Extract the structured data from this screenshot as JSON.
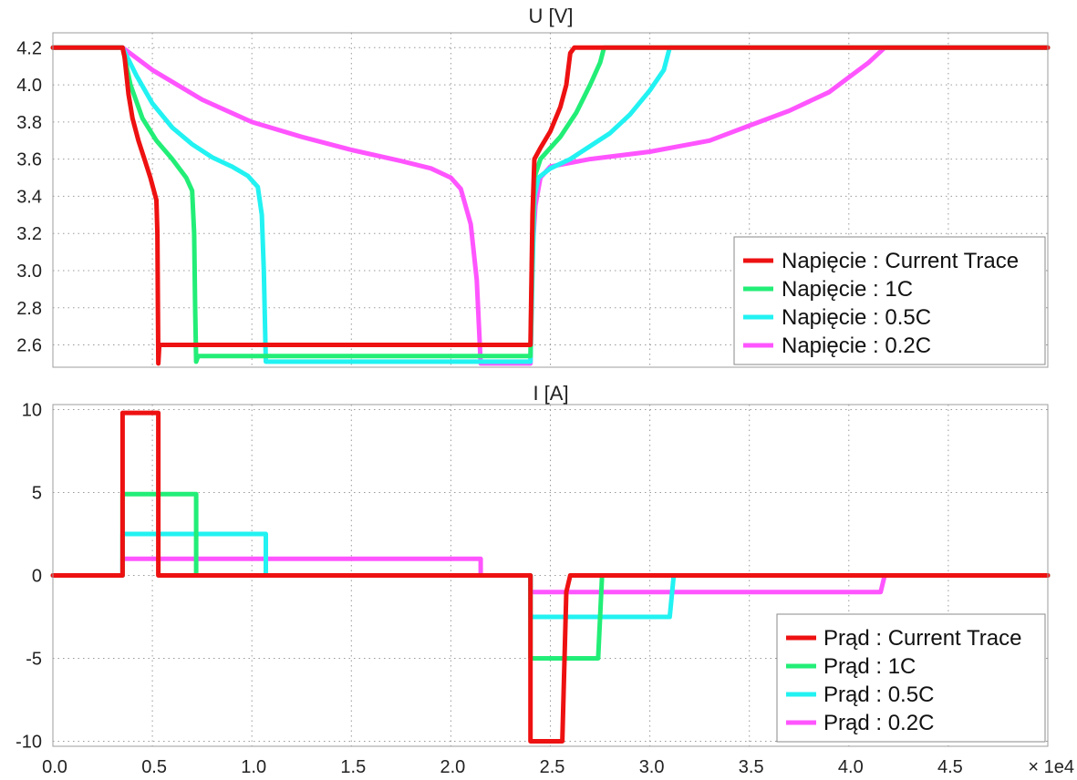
{
  "chart_data": [
    {
      "type": "line",
      "title": "U [V]",
      "xlim": [
        0,
        50000
      ],
      "ylim": [
        2.48,
        4.28
      ],
      "x_ticks": [
        "0.0",
        "0.5",
        "1.0",
        "1.5",
        "2.0",
        "2.5",
        "3.0",
        "3.5",
        "4.0",
        "4.5"
      ],
      "x_tick_values": [
        0,
        5000,
        10000,
        15000,
        20000,
        25000,
        30000,
        35000,
        40000,
        45000
      ],
      "x_multiplier": "× 1e4",
      "y_ticks": [
        "2.6",
        "2.8",
        "3.0",
        "3.2",
        "3.4",
        "3.6",
        "3.8",
        "4.0",
        "4.2"
      ],
      "y_tick_values": [
        2.6,
        2.8,
        3.0,
        3.2,
        3.4,
        3.6,
        3.8,
        4.0,
        4.2
      ],
      "grid": true,
      "legend_position": "bottom-right",
      "series": [
        {
          "name": "Napięcie : 0.2C",
          "color": "#ff55ff",
          "points": [
            [
              0,
              4.2
            ],
            [
              3500,
              4.2
            ],
            [
              5000,
              4.08
            ],
            [
              7500,
              3.92
            ],
            [
              10000,
              3.8
            ],
            [
              12500,
              3.72
            ],
            [
              15000,
              3.65
            ],
            [
              17500,
              3.59
            ],
            [
              19000,
              3.55
            ],
            [
              20000,
              3.5
            ],
            [
              20500,
              3.44
            ],
            [
              21000,
              3.25
            ],
            [
              21300,
              2.95
            ],
            [
              21500,
              2.5
            ],
            [
              24000,
              2.5
            ],
            [
              24100,
              3.1
            ],
            [
              24250,
              3.35
            ],
            [
              24500,
              3.5
            ],
            [
              25000,
              3.56
            ],
            [
              27000,
              3.6
            ],
            [
              30000,
              3.64
            ],
            [
              33000,
              3.7
            ],
            [
              35000,
              3.78
            ],
            [
              37000,
              3.86
            ],
            [
              39000,
              3.96
            ],
            [
              40000,
              4.04
            ],
            [
              41000,
              4.12
            ],
            [
              41800,
              4.2
            ],
            [
              50000,
              4.2
            ]
          ]
        },
        {
          "name": "Napięcie : 0.5C",
          "color": "#22f2f2",
          "points": [
            [
              0,
              4.2
            ],
            [
              3500,
              4.2
            ],
            [
              4200,
              4.05
            ],
            [
              5000,
              3.9
            ],
            [
              6000,
              3.77
            ],
            [
              7000,
              3.68
            ],
            [
              8000,
              3.61
            ],
            [
              9000,
              3.56
            ],
            [
              9800,
              3.51
            ],
            [
              10300,
              3.45
            ],
            [
              10500,
              3.3
            ],
            [
              10600,
              3.0
            ],
            [
              10700,
              2.51
            ],
            [
              24000,
              2.51
            ],
            [
              24100,
              3.0
            ],
            [
              24200,
              3.4
            ],
            [
              24400,
              3.5
            ],
            [
              25000,
              3.55
            ],
            [
              26000,
              3.6
            ],
            [
              27000,
              3.67
            ],
            [
              28000,
              3.74
            ],
            [
              29000,
              3.84
            ],
            [
              30000,
              3.97
            ],
            [
              30700,
              4.08
            ],
            [
              31000,
              4.2
            ],
            [
              50000,
              4.2
            ]
          ]
        },
        {
          "name": "Napięcie : 1C",
          "color": "#22ee77",
          "points": [
            [
              0,
              4.2
            ],
            [
              3500,
              4.2
            ],
            [
              3900,
              4.0
            ],
            [
              4500,
              3.82
            ],
            [
              5200,
              3.7
            ],
            [
              6000,
              3.6
            ],
            [
              6700,
              3.5
            ],
            [
              7000,
              3.43
            ],
            [
              7100,
              3.2
            ],
            [
              7150,
              2.8
            ],
            [
              7200,
              2.51
            ],
            [
              7300,
              2.54
            ],
            [
              24000,
              2.54
            ],
            [
              24100,
              3.2
            ],
            [
              24200,
              3.5
            ],
            [
              24500,
              3.6
            ],
            [
              25500,
              3.72
            ],
            [
              26300,
              3.85
            ],
            [
              27000,
              4.0
            ],
            [
              27500,
              4.12
            ],
            [
              27700,
              4.2
            ],
            [
              50000,
              4.2
            ]
          ]
        },
        {
          "name": "Napięcie : Current Trace",
          "color": "#ee1111",
          "points": [
            [
              0,
              4.2
            ],
            [
              3500,
              4.2
            ],
            [
              3600,
              4.15
            ],
            [
              3800,
              3.95
            ],
            [
              4000,
              3.82
            ],
            [
              4300,
              3.7
            ],
            [
              4600,
              3.6
            ],
            [
              4900,
              3.5
            ],
            [
              5100,
              3.42
            ],
            [
              5200,
              3.38
            ],
            [
              5250,
              3.2
            ],
            [
              5300,
              2.5
            ],
            [
              5350,
              2.6
            ],
            [
              24000,
              2.6
            ],
            [
              24100,
              3.3
            ],
            [
              24200,
              3.6
            ],
            [
              24500,
              3.66
            ],
            [
              25000,
              3.75
            ],
            [
              25500,
              3.88
            ],
            [
              25800,
              4.0
            ],
            [
              26000,
              4.17
            ],
            [
              26200,
              4.2
            ],
            [
              50000,
              4.2
            ]
          ]
        }
      ]
    },
    {
      "type": "line",
      "title": "I [A]",
      "xlim": [
        0,
        50000
      ],
      "ylim": [
        -10.3,
        10.3
      ],
      "x_ticks": [
        "0.0",
        "0.5",
        "1.0",
        "1.5",
        "2.0",
        "2.5",
        "3.0",
        "3.5",
        "4.0",
        "4.5"
      ],
      "x_tick_values": [
        0,
        5000,
        10000,
        15000,
        20000,
        25000,
        30000,
        35000,
        40000,
        45000
      ],
      "x_multiplier": "× 1e4",
      "y_ticks": [
        "-10",
        "-5",
        "0",
        "5",
        "10"
      ],
      "y_tick_values": [
        -10,
        -5,
        0,
        5,
        10
      ],
      "grid": true,
      "legend_position": "bottom-right",
      "series": [
        {
          "name": "Prąd : 0.2C",
          "color": "#ff55ff",
          "points": [
            [
              0,
              0
            ],
            [
              3500,
              0
            ],
            [
              3500,
              1.0
            ],
            [
              21500,
              1.0
            ],
            [
              21500,
              0
            ],
            [
              24000,
              0
            ],
            [
              24000,
              -1.0
            ],
            [
              41600,
              -1.0
            ],
            [
              41800,
              0
            ],
            [
              50000,
              0
            ]
          ]
        },
        {
          "name": "Prąd : 0.5C",
          "color": "#22f2f2",
          "points": [
            [
              0,
              0
            ],
            [
              3500,
              0
            ],
            [
              3500,
              2.5
            ],
            [
              10700,
              2.5
            ],
            [
              10700,
              0
            ],
            [
              24000,
              0
            ],
            [
              24000,
              -2.5
            ],
            [
              31000,
              -2.5
            ],
            [
              31200,
              0
            ],
            [
              50000,
              0
            ]
          ]
        },
        {
          "name": "Prąd : 1C",
          "color": "#22ee77",
          "points": [
            [
              0,
              0
            ],
            [
              3500,
              0
            ],
            [
              3500,
              4.9
            ],
            [
              7200,
              4.9
            ],
            [
              7200,
              0
            ],
            [
              24000,
              0
            ],
            [
              24000,
              -5.0
            ],
            [
              27400,
              -5.0
            ],
            [
              27600,
              0
            ],
            [
              50000,
              0
            ]
          ]
        },
        {
          "name": "Prąd : Current Trace",
          "color": "#ee1111",
          "points": [
            [
              0,
              0
            ],
            [
              3500,
              0
            ],
            [
              3500,
              9.8
            ],
            [
              5300,
              9.8
            ],
            [
              5300,
              0
            ],
            [
              24000,
              0
            ],
            [
              24000,
              -10.0
            ],
            [
              25600,
              -10.0
            ],
            [
              25800,
              -1.0
            ],
            [
              26000,
              0
            ],
            [
              50000,
              0
            ]
          ]
        }
      ]
    }
  ],
  "legends": [
    [
      "Napięcie : Current Trace",
      "Napięcie : 1C",
      "Napięcie : 0.5C",
      "Napięcie : 0.2C"
    ],
    [
      "Prąd : Current Trace",
      "Prąd : 1C",
      "Prąd : 0.5C",
      "Prąd : 0.2C"
    ]
  ]
}
